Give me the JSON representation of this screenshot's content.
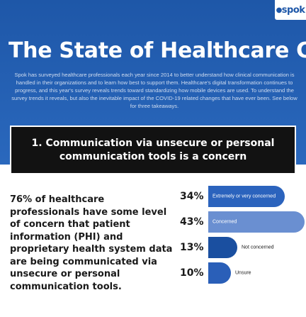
{
  "logo": {
    "text": "spok"
  },
  "hero": {
    "title": "The State of Healthcare Communication",
    "intro": "Spok has surveyed healthcare professionals each year since 2014 to better understand how clinical communication is handled in their organizations and to learn how best to support them. Healthcare's digital transformation continues to progress, and this year's survey reveals trends toward standardizing how mobile devices are used. To understand the survey trends it reveals, but also the inevitable impact of the COVID-19 related changes that have ever been. See below for three takeaways."
  },
  "callout": {
    "text": "1. Communication via unsecure or personal communication tools is a concern"
  },
  "stat": {
    "text": "76% of healthcare professionals have some level of concern that patient information (PHI) and proprietary health system data are being communicated via unsecure or personal communication tools."
  },
  "colors": {
    "hero": "#1e57a8",
    "callout": "#121212",
    "extremely": "#2b63bd",
    "concerned": "#6a8fd1",
    "not_concerned": "#1a4fa0",
    "unsure": "#2a5fb8"
  },
  "chart_data": {
    "type": "bar",
    "categories": [
      "Extremely or very concerned",
      "Concerned",
      "Not concerned",
      "Unsure"
    ],
    "values": [
      34,
      43,
      13,
      10
    ],
    "value_labels": [
      "34%",
      "43%",
      "13%",
      "10%"
    ]
  }
}
